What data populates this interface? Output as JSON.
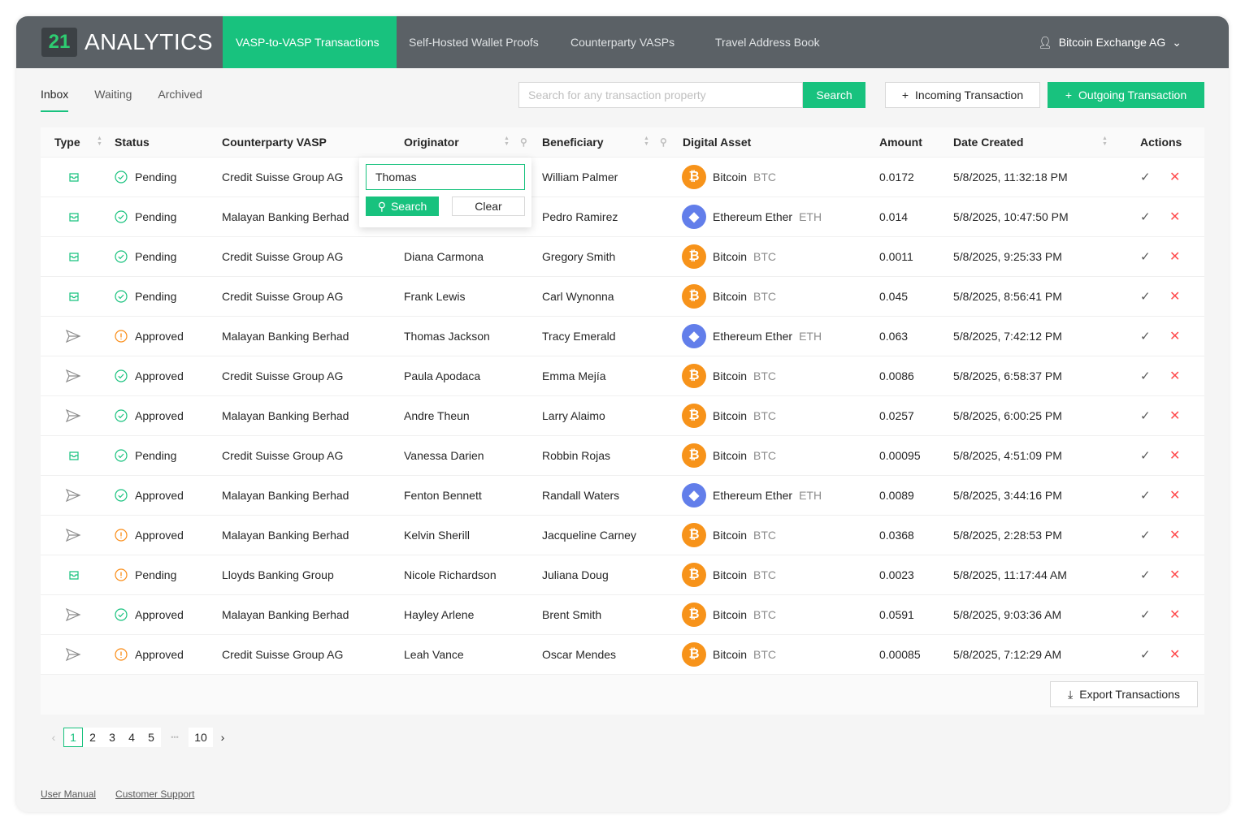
{
  "header": {
    "logo_mark": "21",
    "logo_text": "ANALYTICS",
    "nav": [
      "VASP-to-VASP Transactions",
      "Self-Hosted Wallet Proofs",
      "Counterparty VASPs",
      "Travel Address Book"
    ],
    "active_nav": 0,
    "user": "Bitcoin Exchange AG"
  },
  "subtabs": [
    "Inbox",
    "Waiting",
    "Archived"
  ],
  "search": {
    "placeholder": "Search for any transaction property",
    "button": "Search"
  },
  "actions": {
    "incoming": "Incoming Transaction",
    "outgoing": "Outgoing Transaction",
    "export": "Export Transactions"
  },
  "colors": {
    "accent": "#18c27e",
    "header": "#5b6166",
    "pending": "#18c27e",
    "warn": "#fa8c16",
    "reject": "#ff4d4f"
  },
  "columns": [
    "Type",
    "Status",
    "Counterparty VASP",
    "Originator",
    "Beneficiary",
    "Digital Asset",
    "Amount",
    "Date Created",
    "Actions"
  ],
  "filter_popup": {
    "value": "Thomas",
    "search": "Search",
    "clear": "Clear"
  },
  "rows": [
    {
      "type": "inbox",
      "status": "Pending",
      "icon": "check",
      "vasp": "Credit Suisse Group AG",
      "orig": "",
      "benef": "William Palmer",
      "asset": "Bitcoin",
      "sym": "BTC",
      "amount": "0.0172",
      "date": "5/8/2025, 11:32:18 PM"
    },
    {
      "type": "inbox",
      "status": "Pending",
      "icon": "check",
      "vasp": "Malayan Banking Berhad",
      "orig": "",
      "benef": "Pedro Ramirez",
      "asset": "Ethereum Ether",
      "sym": "ETH",
      "amount": "0.014",
      "date": "5/8/2025, 10:47:50 PM"
    },
    {
      "type": "inbox",
      "status": "Pending",
      "icon": "check",
      "vasp": "Credit Suisse Group AG",
      "orig": "Diana Carmona",
      "benef": "Gregory Smith",
      "asset": "Bitcoin",
      "sym": "BTC",
      "amount": "0.0011",
      "date": "5/8/2025, 9:25:33 PM"
    },
    {
      "type": "inbox",
      "status": "Pending",
      "icon": "check",
      "vasp": "Credit Suisse Group AG",
      "orig": "Frank Lewis",
      "benef": "Carl Wynonna",
      "asset": "Bitcoin",
      "sym": "BTC",
      "amount": "0.045",
      "date": "5/8/2025, 8:56:41 PM"
    },
    {
      "type": "send",
      "status": "Approved",
      "icon": "info",
      "vasp": "Malayan Banking Berhad",
      "orig": "Thomas Jackson",
      "benef": "Tracy Emerald",
      "asset": "Ethereum Ether",
      "sym": "ETH",
      "amount": "0.063",
      "date": "5/8/2025, 7:42:12 PM"
    },
    {
      "type": "send",
      "status": "Approved",
      "icon": "check",
      "vasp": "Credit Suisse Group AG",
      "orig": "Paula Apodaca",
      "benef": "Emma Mejía",
      "asset": "Bitcoin",
      "sym": "BTC",
      "amount": "0.0086",
      "date": "5/8/2025, 6:58:37 PM"
    },
    {
      "type": "send",
      "status": "Approved",
      "icon": "check",
      "vasp": "Malayan Banking Berhad",
      "orig": "Andre Theun",
      "benef": "Larry Alaimo",
      "asset": "Bitcoin",
      "sym": "BTC",
      "amount": "0.0257",
      "date": "5/8/2025, 6:00:25 PM"
    },
    {
      "type": "inbox",
      "status": "Pending",
      "icon": "check",
      "vasp": "Credit Suisse Group AG",
      "orig": "Vanessa Darien",
      "benef": "Robbin Rojas",
      "asset": "Bitcoin",
      "sym": "BTC",
      "amount": "0.00095",
      "date": "5/8/2025, 4:51:09 PM"
    },
    {
      "type": "send",
      "status": "Approved",
      "icon": "check",
      "vasp": "Malayan Banking Berhad",
      "orig": "Fenton Bennett",
      "benef": "Randall Waters",
      "asset": "Ethereum Ether",
      "sym": "ETH",
      "amount": "0.0089",
      "date": "5/8/2025, 3:44:16 PM"
    },
    {
      "type": "send",
      "status": "Approved",
      "icon": "info",
      "vasp": "Malayan Banking Berhad",
      "orig": "Kelvin Sherill",
      "benef": "Jacqueline Carney",
      "asset": "Bitcoin",
      "sym": "BTC",
      "amount": "0.0368",
      "date": "5/8/2025, 2:28:53 PM"
    },
    {
      "type": "inbox",
      "status": "Pending",
      "icon": "info",
      "vasp": "Lloyds Banking Group",
      "orig": "Nicole Richardson",
      "benef": "Juliana Doug",
      "asset": "Bitcoin",
      "sym": "BTC",
      "amount": "0.0023",
      "date": "5/8/2025, 11:17:44 AM"
    },
    {
      "type": "send",
      "status": "Approved",
      "icon": "check",
      "vasp": "Malayan Banking Berhad",
      "orig": "Hayley Arlene",
      "benef": "Brent Smith",
      "asset": "Bitcoin",
      "sym": "BTC",
      "amount": "0.0591",
      "date": "5/8/2025, 9:03:36 AM"
    },
    {
      "type": "send",
      "status": "Approved",
      "icon": "info",
      "vasp": "Credit Suisse Group AG",
      "orig": "Leah Vance",
      "benef": "Oscar Mendes",
      "asset": "Bitcoin",
      "sym": "BTC",
      "amount": "0.00085",
      "date": "5/8/2025, 7:12:29 AM"
    }
  ],
  "pagination": {
    "pages": [
      "1",
      "2",
      "3",
      "4",
      "5"
    ],
    "ellipsis": "•••",
    "last": "10",
    "current": "1"
  },
  "footer_links": [
    "User Manual",
    "Customer Support"
  ]
}
